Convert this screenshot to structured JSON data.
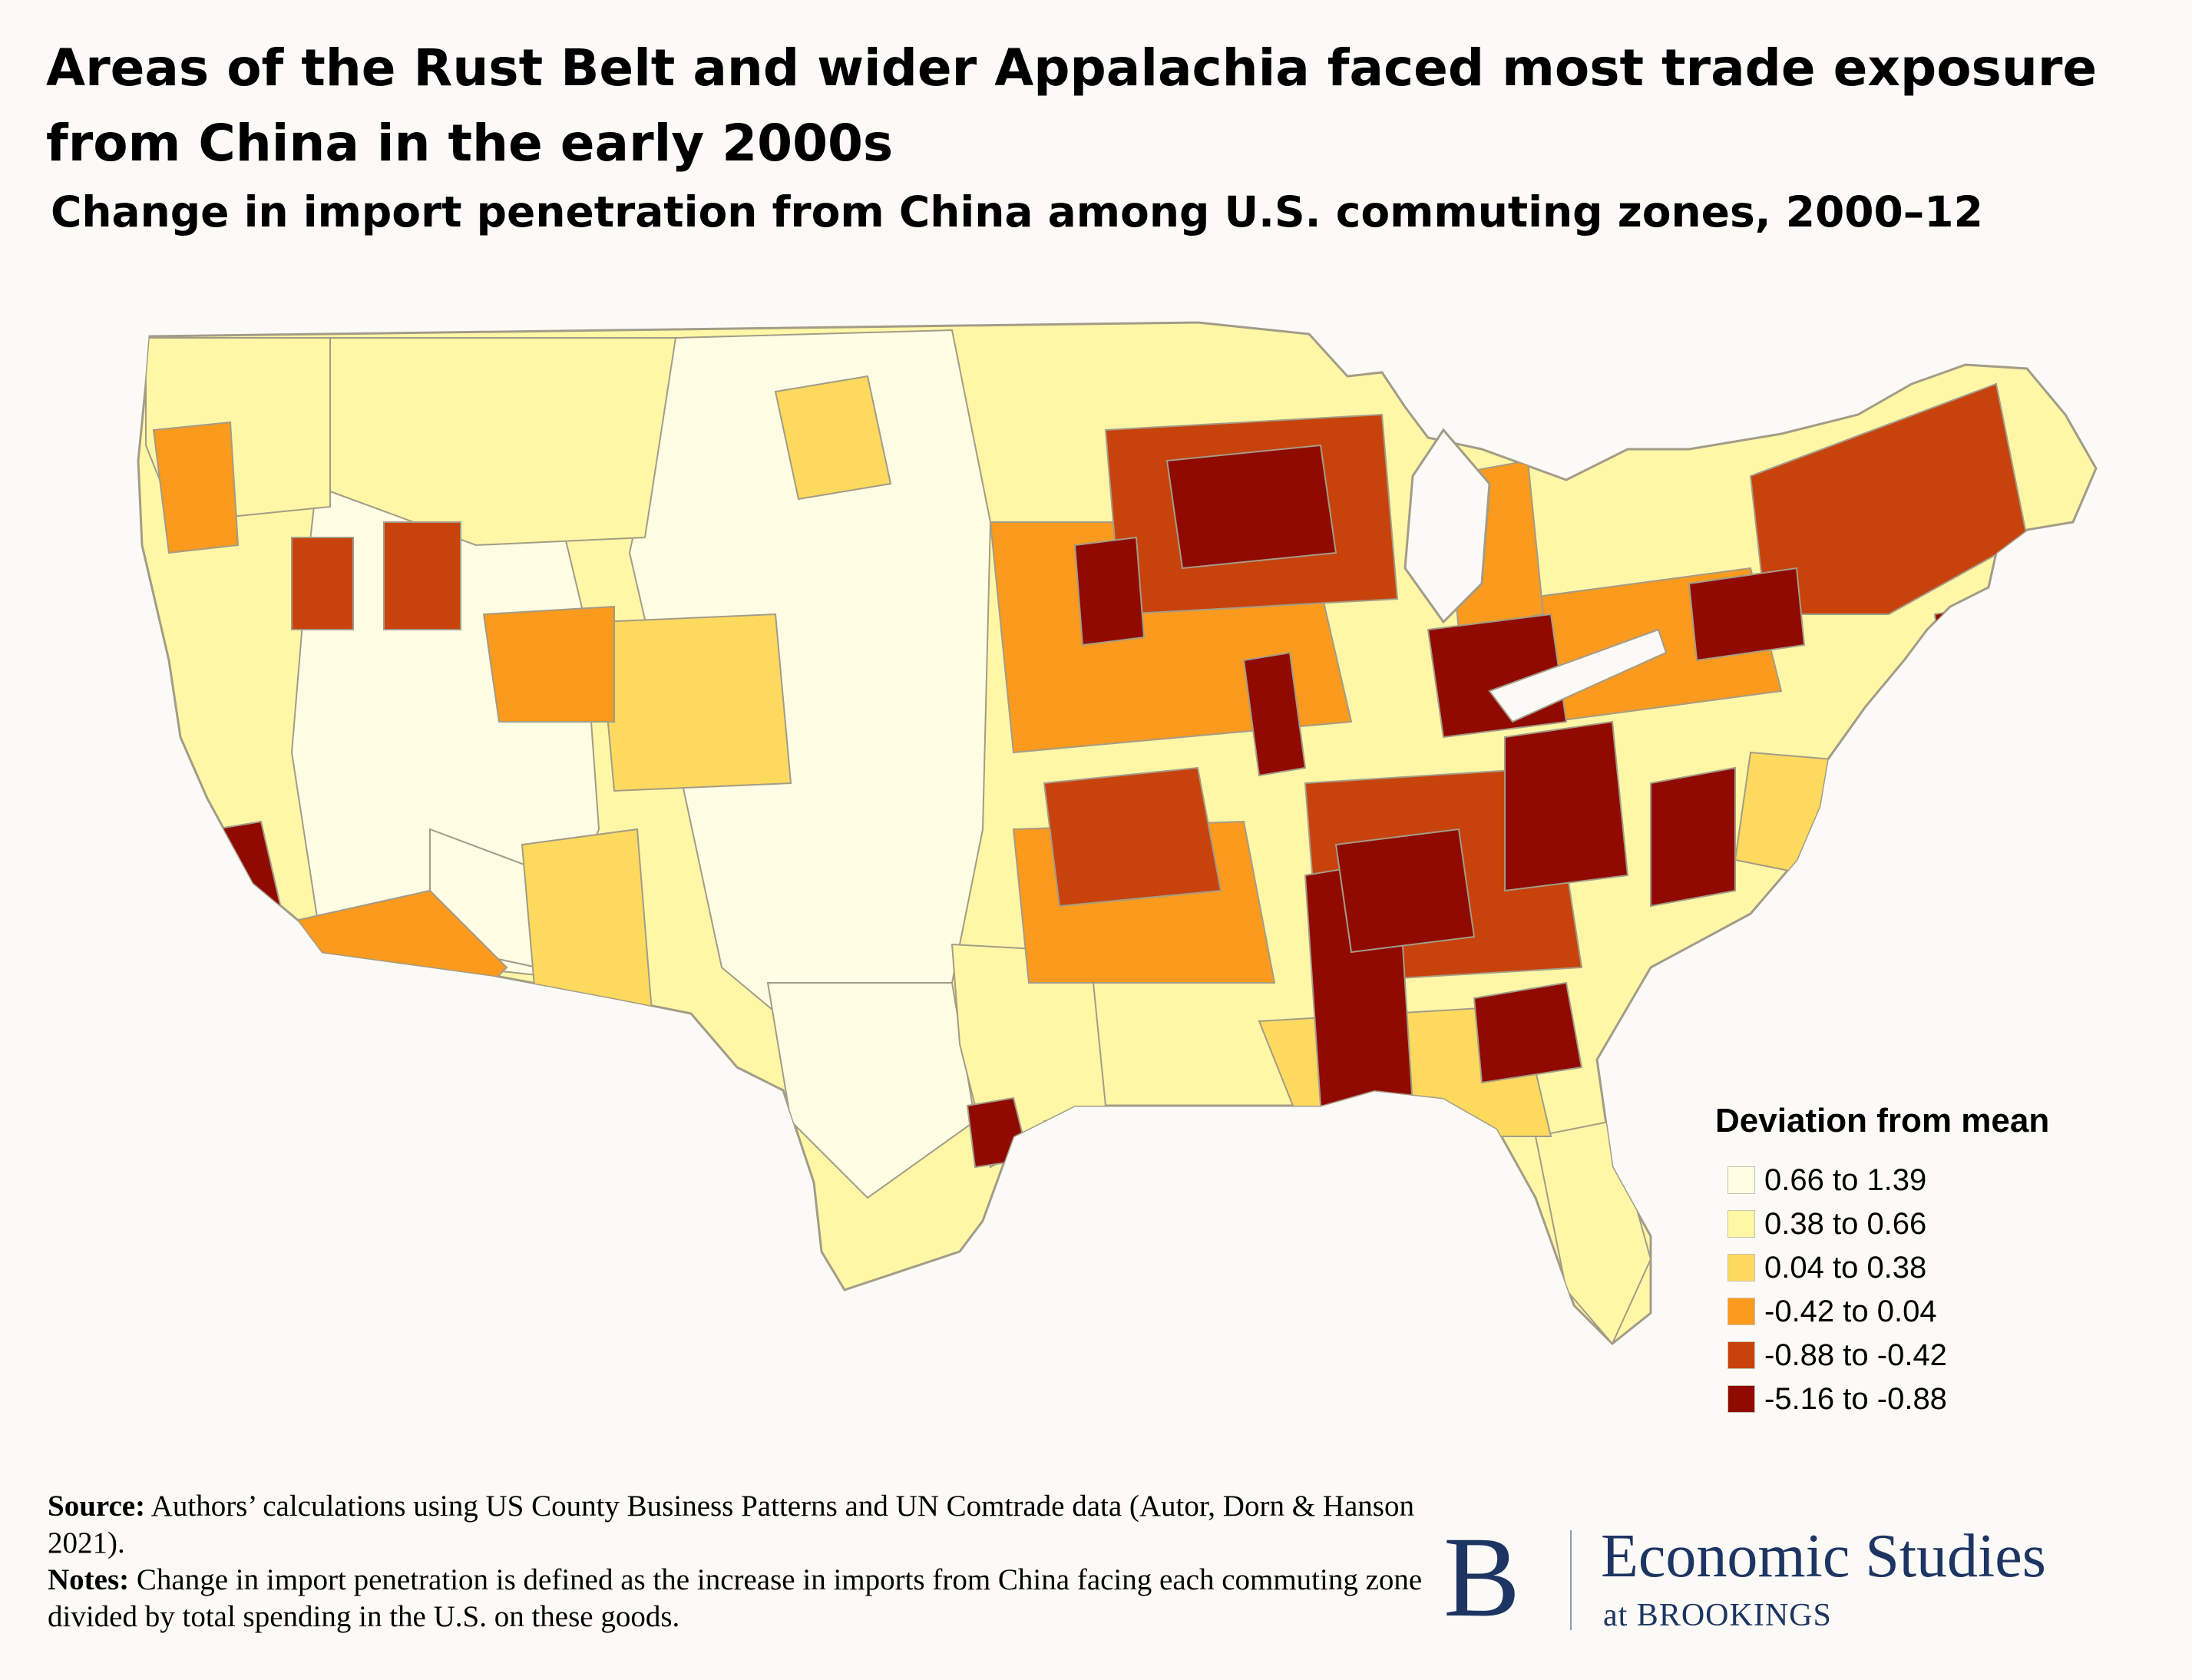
{
  "header": {
    "title": "Areas of the Rust Belt and wider Appalachia faced most trade exposure from China in the early 2000s",
    "subtitle": "Change in import penetration from China among U.S. commuting zones, 2000–12"
  },
  "legend": {
    "title": "Deviation from mean",
    "classes": [
      {
        "label": "0.66 to 1.39",
        "color": "#fffde4"
      },
      {
        "label": "0.38 to 0.66",
        "color": "#fff7a6"
      },
      {
        "label": "0.04 to 0.38",
        "color": "#fdd95e"
      },
      {
        "label": "-0.42 to 0.04",
        "color": "#fb9a1c"
      },
      {
        "label": "-0.88 to -0.42",
        "color": "#c8420c"
      },
      {
        "label": "-5.16 to -0.88",
        "color": "#900a02"
      }
    ]
  },
  "map": {
    "border_color": "#a39c88",
    "land_color": "#fff7a6",
    "water_color": "#fbfaf7",
    "regions": [
      {
        "area": "Southwest and Great Basin",
        "class": 0
      },
      {
        "area": "Great Plains",
        "class": 0
      },
      {
        "area": "West Texas",
        "class": 0
      },
      {
        "area": "Pacific Northwest",
        "class": 1
      },
      {
        "area": "Northern Rockies",
        "class": 1
      },
      {
        "area": "Colorado",
        "class": 2
      },
      {
        "area": "Arizona",
        "class": 3
      },
      {
        "area": "Western Oregon",
        "class": 3
      },
      {
        "area": "Northern Utah",
        "class": 3
      },
      {
        "area": "Idaho",
        "class": 4
      },
      {
        "area": "Wyoming",
        "class": 4
      },
      {
        "area": "Los Angeles",
        "class": 5
      },
      {
        "area": "Upper Midwest",
        "class": 4
      },
      {
        "area": "Wisconsin",
        "class": 5
      },
      {
        "area": "Michigan",
        "class": 4
      },
      {
        "area": "Ohio Valley",
        "class": 5
      },
      {
        "area": "Pennsylvania",
        "class": 3
      },
      {
        "area": "New York and New England",
        "class": 4
      },
      {
        "area": "Appalachia",
        "class": 5
      },
      {
        "area": "Carolinas",
        "class": 5
      },
      {
        "area": "Mississippi and Alabama",
        "class": 5
      },
      {
        "area": "Texas Triangle",
        "class": 5
      },
      {
        "area": "Florida",
        "class": 1
      }
    ]
  },
  "footer": {
    "source_label": "Source:",
    "source_text": " Authors’ calculations using US County Business Patterns and UN Comtrade data (Autor, Dorn & Hanson 2021).",
    "notes_label": "Notes:",
    "notes_text": " Change in import penetration is defined as the increase in imports from China facing each commuting zone divided by total spending in the U.S. on these goods."
  },
  "brand": {
    "logo_letter": "B",
    "name": "Economic Studies",
    "sub": "at BROOKINGS"
  }
}
